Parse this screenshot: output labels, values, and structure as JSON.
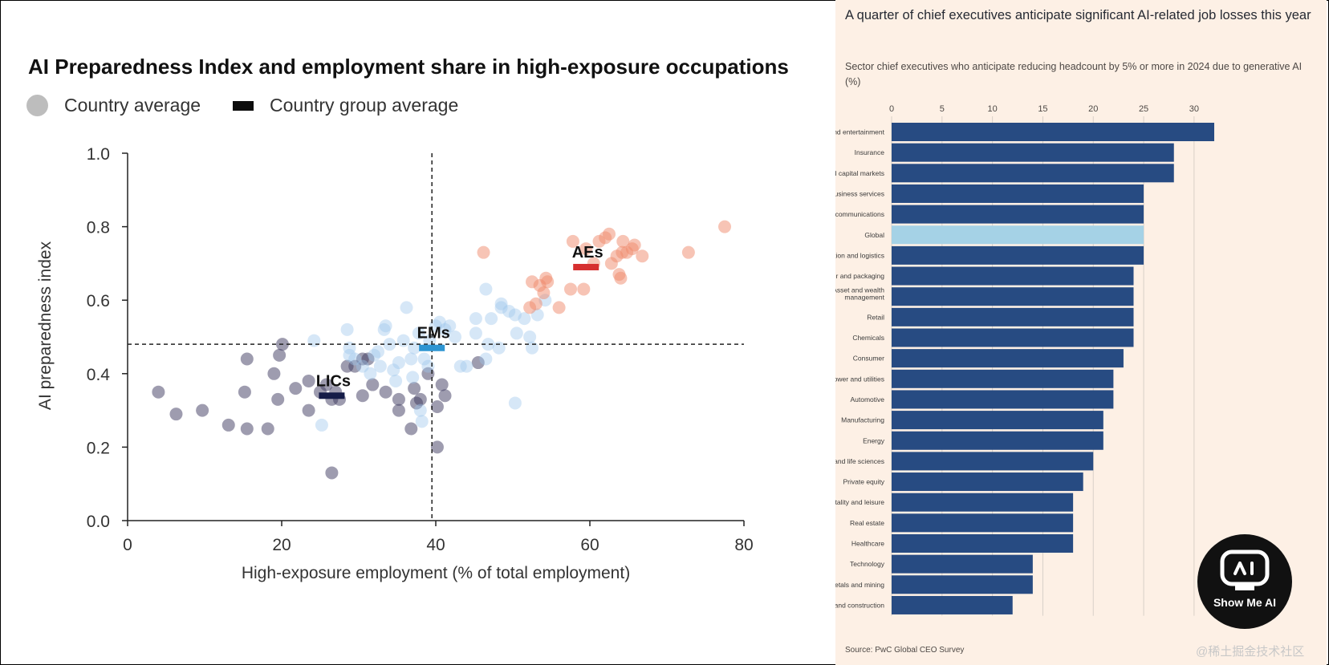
{
  "left_chart": {
    "title": "AI Preparedness Index and employment share in high-exposure occupations",
    "legend": {
      "country_average": "Country average",
      "group_average": "Country group average"
    },
    "colors": {
      "lic": "#3d3a5f",
      "em": "#9dc6ec",
      "ae": "#ef8a6b",
      "lic_bar": "#151c48",
      "em_bar": "#2e95d2",
      "ae_bar": "#d62f2f",
      "axis": "#222222"
    }
  },
  "right_chart": {
    "title": "A quarter of chief executives anticipate significant AI-related job losses this year",
    "subtitle": "Sector chief executives who anticipate reducing headcount by 5% or more in 2024 due to generative AI (%)",
    "source": "Source: PwC Global CEO Survey",
    "colors": {
      "bar": "#274b82",
      "highlight": "#a5d2e6",
      "grid": "#d8d0c8",
      "panel_bg": "#fdf0e5"
    }
  },
  "watermark": "@稀土掘金技术社区",
  "badge": {
    "label": "Show Me AI"
  },
  "chart_data": [
    {
      "type": "scatter",
      "title": "AI Preparedness Index and employment share in high-exposure occupations",
      "xlabel": "High-exposure employment (% of total employment)",
      "ylabel": "AI preparedness index",
      "xlim": [
        0,
        80
      ],
      "ylim": [
        0,
        1
      ],
      "xticks": [
        0,
        20,
        40,
        60,
        80
      ],
      "yticks": [
        0.0,
        0.2,
        0.4,
        0.6,
        0.8,
        1.0
      ],
      "ytick_labels": [
        "0.0",
        "0.2",
        "0.4",
        "0.6",
        "0.8",
        "1.0"
      ],
      "reference_lines": {
        "x": 39.5,
        "y": 0.48
      },
      "legend_position": "top-left",
      "grid": false,
      "series": [
        {
          "group": "LIC",
          "points": [
            [
              4,
              0.35
            ],
            [
              6.3,
              0.29
            ],
            [
              9.7,
              0.3
            ],
            [
              13.1,
              0.26
            ],
            [
              15.2,
              0.35
            ],
            [
              15.5,
              0.44
            ],
            [
              15.5,
              0.25
            ],
            [
              18.2,
              0.25
            ],
            [
              19,
              0.4
            ],
            [
              19.5,
              0.33
            ],
            [
              19.7,
              0.45
            ],
            [
              20.1,
              0.48
            ],
            [
              21.8,
              0.36
            ],
            [
              23.5,
              0.38
            ],
            [
              23.5,
              0.3
            ],
            [
              25,
              0.35
            ],
            [
              25.8,
              0.37
            ],
            [
              26.5,
              0.33
            ],
            [
              27,
              0.35
            ],
            [
              27.5,
              0.33
            ],
            [
              28.5,
              0.42
            ],
            [
              29.5,
              0.42
            ],
            [
              30.5,
              0.44
            ],
            [
              31.2,
              0.44
            ],
            [
              30.5,
              0.34
            ],
            [
              31.8,
              0.37
            ],
            [
              33.5,
              0.35
            ],
            [
              35.2,
              0.33
            ],
            [
              35.2,
              0.3
            ],
            [
              36.8,
              0.25
            ],
            [
              37.2,
              0.36
            ],
            [
              37.5,
              0.32
            ],
            [
              38,
              0.33
            ],
            [
              39,
              0.4
            ],
            [
              40.2,
              0.31
            ],
            [
              40.8,
              0.37
            ],
            [
              41.2,
              0.34
            ],
            [
              40.2,
              0.2
            ],
            [
              45.5,
              0.43
            ],
            [
              26.5,
              0.13
            ]
          ]
        },
        {
          "group": "EM",
          "points": [
            [
              24.2,
              0.49
            ],
            [
              25.2,
              0.26
            ],
            [
              28.8,
              0.45
            ],
            [
              28.8,
              0.47
            ],
            [
              28.5,
              0.52
            ],
            [
              29.5,
              0.44
            ],
            [
              30.5,
              0.42
            ],
            [
              31.5,
              0.4
            ],
            [
              32,
              0.45
            ],
            [
              32.5,
              0.46
            ],
            [
              32.8,
              0.42
            ],
            [
              33.3,
              0.52
            ],
            [
              33.5,
              0.53
            ],
            [
              34,
              0.48
            ],
            [
              34.5,
              0.41
            ],
            [
              34.8,
              0.38
            ],
            [
              35.2,
              0.43
            ],
            [
              35.8,
              0.49
            ],
            [
              36.2,
              0.58
            ],
            [
              36.8,
              0.44
            ],
            [
              37,
              0.39
            ],
            [
              37.2,
              0.47
            ],
            [
              37.8,
              0.51
            ],
            [
              38,
              0.3
            ],
            [
              38.2,
              0.27
            ],
            [
              38.5,
              0.44
            ],
            [
              39,
              0.42
            ],
            [
              39.2,
              0.49
            ],
            [
              40,
              0.53
            ],
            [
              40.5,
              0.54
            ],
            [
              41.2,
              0.52
            ],
            [
              41.8,
              0.53
            ],
            [
              42.5,
              0.5
            ],
            [
              43.2,
              0.42
            ],
            [
              44,
              0.42
            ],
            [
              45.2,
              0.51
            ],
            [
              45.2,
              0.55
            ],
            [
              46.5,
              0.44
            ],
            [
              46.8,
              0.48
            ],
            [
              47.2,
              0.55
            ],
            [
              48.2,
              0.47
            ],
            [
              48.5,
              0.58
            ],
            [
              48.5,
              0.59
            ],
            [
              49.5,
              0.57
            ],
            [
              50.3,
              0.32
            ],
            [
              50.5,
              0.51
            ],
            [
              51.5,
              0.55
            ],
            [
              52.2,
              0.5
            ],
            [
              52.5,
              0.47
            ],
            [
              53.2,
              0.56
            ],
            [
              54.2,
              0.6
            ],
            [
              50.3,
              0.56
            ],
            [
              46.5,
              0.63
            ]
          ]
        },
        {
          "group": "AE",
          "points": [
            [
              46.2,
              0.73
            ],
            [
              52.2,
              0.58
            ],
            [
              52.5,
              0.65
            ],
            [
              53,
              0.59
            ],
            [
              53.5,
              0.64
            ],
            [
              54,
              0.62
            ],
            [
              54.3,
              0.66
            ],
            [
              54.5,
              0.65
            ],
            [
              56,
              0.58
            ],
            [
              57.5,
              0.63
            ],
            [
              59.2,
              0.63
            ],
            [
              57.8,
              0.76
            ],
            [
              59.5,
              0.74
            ],
            [
              60.5,
              0.7
            ],
            [
              61.2,
              0.76
            ],
            [
              62,
              0.77
            ],
            [
              62.5,
              0.78
            ],
            [
              62.8,
              0.7
            ],
            [
              63.5,
              0.72
            ],
            [
              63.8,
              0.67
            ],
            [
              64,
              0.66
            ],
            [
              64.2,
              0.73
            ],
            [
              64.3,
              0.76
            ],
            [
              64.8,
              0.73
            ],
            [
              65.5,
              0.74
            ],
            [
              65.8,
              0.75
            ],
            [
              66.8,
              0.72
            ],
            [
              72.8,
              0.73
            ],
            [
              77.5,
              0.8
            ]
          ]
        }
      ],
      "group_averages": [
        {
          "label": "LICs",
          "x": 26.5,
          "y": 0.34
        },
        {
          "label": "EMs",
          "x": 39.5,
          "y": 0.47
        },
        {
          "label": "AEs",
          "x": 59.5,
          "y": 0.69
        }
      ]
    },
    {
      "type": "bar",
      "orientation": "horizontal",
      "title": "A quarter of chief executives anticipate significant AI-related job losses this year",
      "subtitle": "Sector chief executives who anticipate reducing headcount by 5% or more in 2024 due to generative AI (%)",
      "xlim": [
        0,
        32
      ],
      "xticks": [
        0,
        5,
        10,
        15,
        20,
        25,
        30
      ],
      "grid": true,
      "highlight": "Global",
      "categories": [
        "Media and entertainment",
        "Insurance",
        "Banking and capital markets",
        "Business services",
        "Telecommunications",
        "Global",
        "Transportation and logistics",
        "Forest, paper and packaging",
        "Asset and wealth management",
        "Retail",
        "Chemicals",
        "Consumer",
        "Power and utilities",
        "Automotive",
        "Manufacturing",
        "Energy",
        "Pharma and life sciences",
        "Private equity",
        "Hospitality and leisure",
        "Real estate",
        "Healthcare",
        "Technology",
        "Metals and mining",
        "Engineering and construction"
      ],
      "values": [
        32,
        28,
        28,
        25,
        25,
        25,
        25,
        24,
        24,
        24,
        24,
        23,
        22,
        22,
        21,
        21,
        20,
        19,
        18,
        18,
        18,
        14,
        14,
        12
      ],
      "source": "Source: PwC Global CEO Survey"
    }
  ]
}
